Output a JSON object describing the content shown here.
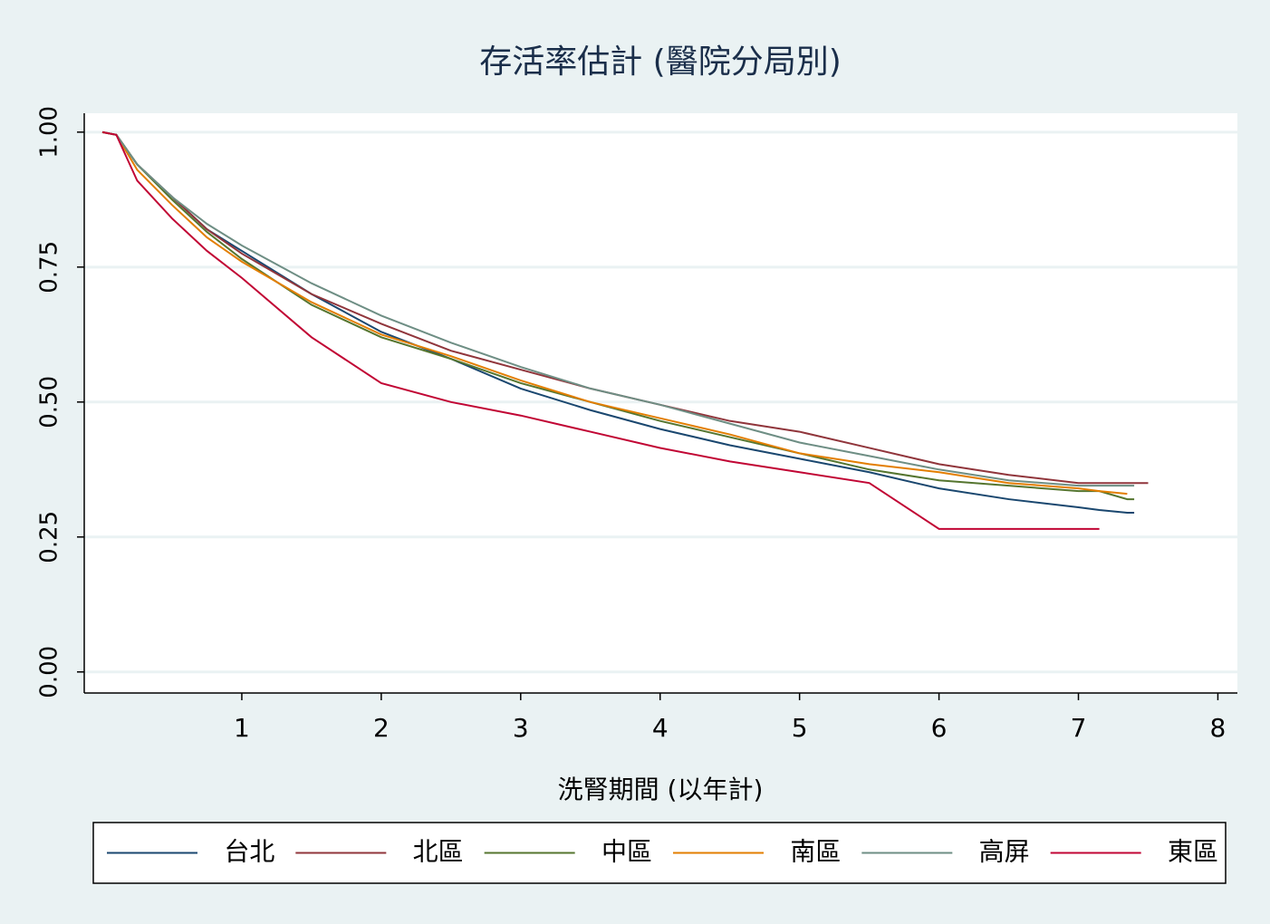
{
  "chart_data": {
    "type": "line",
    "title": "存活率估計 (醫院分局別)",
    "x_label": "洗腎期間 (以年計)",
    "x": [
      0,
      0.1,
      0.25,
      0.5,
      0.75,
      1,
      1.5,
      2,
      2.5,
      3,
      3.5,
      4,
      4.5,
      5,
      5.5,
      6,
      6.5,
      7,
      7.15,
      7.35,
      7.4,
      7.5
    ],
    "series": [
      {
        "name": "台北",
        "color": "#1a476f",
        "values": [
          1,
          0.995,
          0.94,
          0.88,
          0.82,
          0.78,
          0.7,
          0.63,
          0.58,
          0.525,
          0.485,
          0.45,
          0.42,
          0.395,
          0.37,
          0.34,
          0.32,
          0.305,
          0.3,
          0.295,
          0.295,
          null
        ]
      },
      {
        "name": "北區",
        "color": "#90353b",
        "values": [
          1,
          0.995,
          0.94,
          0.88,
          0.82,
          0.775,
          0.7,
          0.645,
          0.595,
          0.56,
          0.525,
          0.495,
          0.465,
          0.445,
          0.415,
          0.385,
          0.365,
          0.35,
          0.35,
          0.35,
          0.35,
          0.35
        ]
      },
      {
        "name": "中區",
        "color": "#55752f",
        "values": [
          1,
          0.995,
          0.94,
          0.875,
          0.815,
          0.765,
          0.68,
          0.62,
          0.58,
          0.535,
          0.5,
          0.465,
          0.435,
          0.405,
          0.375,
          0.355,
          0.345,
          0.335,
          0.335,
          0.32,
          0.32,
          null
        ]
      },
      {
        "name": "南區",
        "color": "#e37e00",
        "values": [
          1,
          0.995,
          0.93,
          0.865,
          0.805,
          0.76,
          0.685,
          0.625,
          0.585,
          0.54,
          0.5,
          0.47,
          0.44,
          0.405,
          0.385,
          0.37,
          0.35,
          0.34,
          0.335,
          0.33,
          null,
          null
        ]
      },
      {
        "name": "高屏",
        "color": "#6e8e84",
        "values": [
          1,
          0.995,
          0.94,
          0.88,
          0.83,
          0.79,
          0.72,
          0.66,
          0.61,
          0.565,
          0.525,
          0.495,
          0.46,
          0.425,
          0.4,
          0.375,
          0.355,
          0.345,
          0.345,
          0.345,
          0.345,
          null
        ]
      },
      {
        "name": "東區",
        "color": "#c10534",
        "values": [
          1,
          0.995,
          0.91,
          0.84,
          0.78,
          0.73,
          0.62,
          0.535,
          0.5,
          0.475,
          0.445,
          0.415,
          0.39,
          0.37,
          0.35,
          0.265,
          0.265,
          0.265,
          0.265,
          null,
          null,
          null
        ]
      }
    ],
    "xlim": [
      -0.13,
      8.14
    ],
    "ylim": [
      -0.039,
      1.035
    ],
    "xticks": [
      1,
      2,
      3,
      4,
      5,
      6,
      7,
      8
    ],
    "yticks": [
      {
        "value": 0,
        "label": "0.00"
      },
      0.25,
      {
        "value": 0.5,
        "label": "0.50"
      },
      0.75,
      {
        "value": 1,
        "label": "1.00"
      }
    ],
    "grid": true,
    "legend": "bottom"
  }
}
